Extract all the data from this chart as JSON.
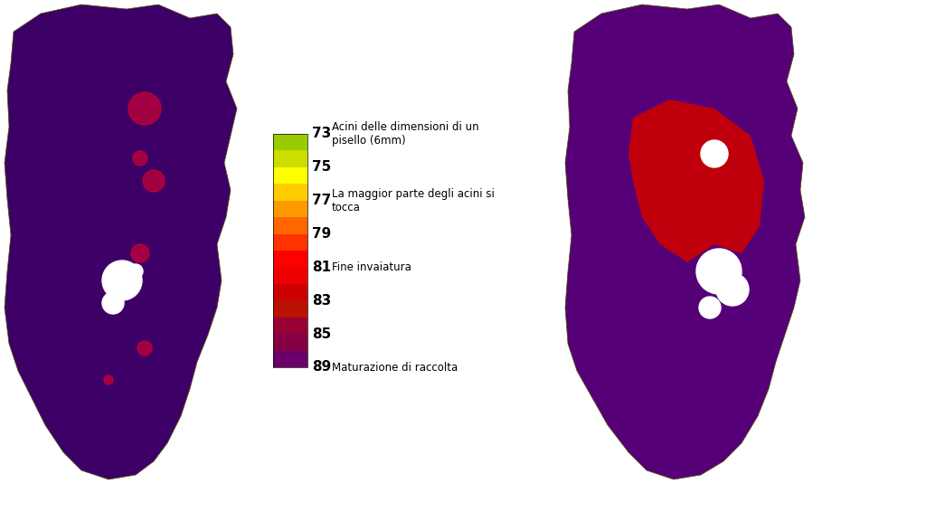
{
  "legend_entries": [
    {
      "value": "89",
      "color": "#6B006B",
      "label": "Maturazione di raccolta"
    },
    {
      "value": "85",
      "color": "#990033",
      "label": ""
    },
    {
      "value": "83",
      "color": "#CC0000",
      "label": ""
    },
    {
      "value": "81",
      "color": "#FF0000",
      "label": "Fine invaiatura"
    },
    {
      "value": "79",
      "color": "#FF6600",
      "label": ""
    },
    {
      "value": "77",
      "color": "#FF9900",
      "label": "La maggior parte degli acini si\ntocca"
    },
    {
      "value": "75",
      "color": "#FFFF00",
      "label": ""
    },
    {
      "value": "73",
      "color": "#99CC00",
      "label": "Acini delle dimensioni di un\npisello (6mm)"
    }
  ],
  "colorbar_colors": [
    "#6B006B",
    "#880044",
    "#990033",
    "#CC0000",
    "#FF0000",
    "#FF3300",
    "#FF6600",
    "#FF9900",
    "#FFCC00",
    "#FFFF00",
    "#CCDD00",
    "#99CC00"
  ],
  "background_color": "#ffffff",
  "figure_width": 10.24,
  "figure_height": 5.66,
  "dpi": 100
}
